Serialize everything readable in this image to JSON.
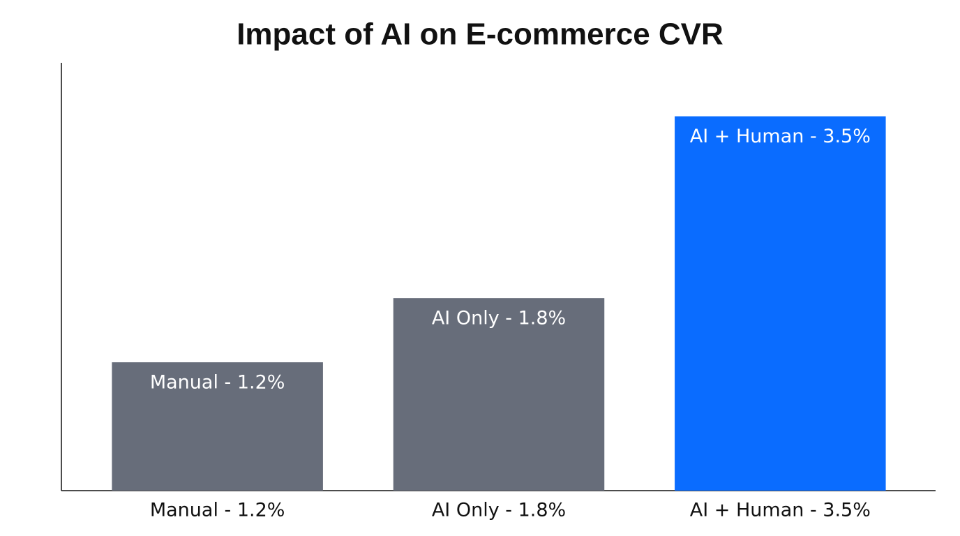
{
  "chart_data": {
    "type": "bar",
    "title": "Impact of AI on E-commerce CVR",
    "categories": [
      "Manual - 1.2%",
      "AI Only - 1.8%",
      "AI + Human - 3.5%"
    ],
    "values": [
      1.2,
      1.8,
      3.5
    ],
    "value_labels": [
      "Manual - 1.2%",
      "AI Only - 1.8%",
      "AI + Human - 3.5%"
    ],
    "colors": [
      "#676d7a",
      "#676d7a",
      "#0a6cff"
    ],
    "ylim": [
      0,
      4
    ],
    "grid": false
  }
}
